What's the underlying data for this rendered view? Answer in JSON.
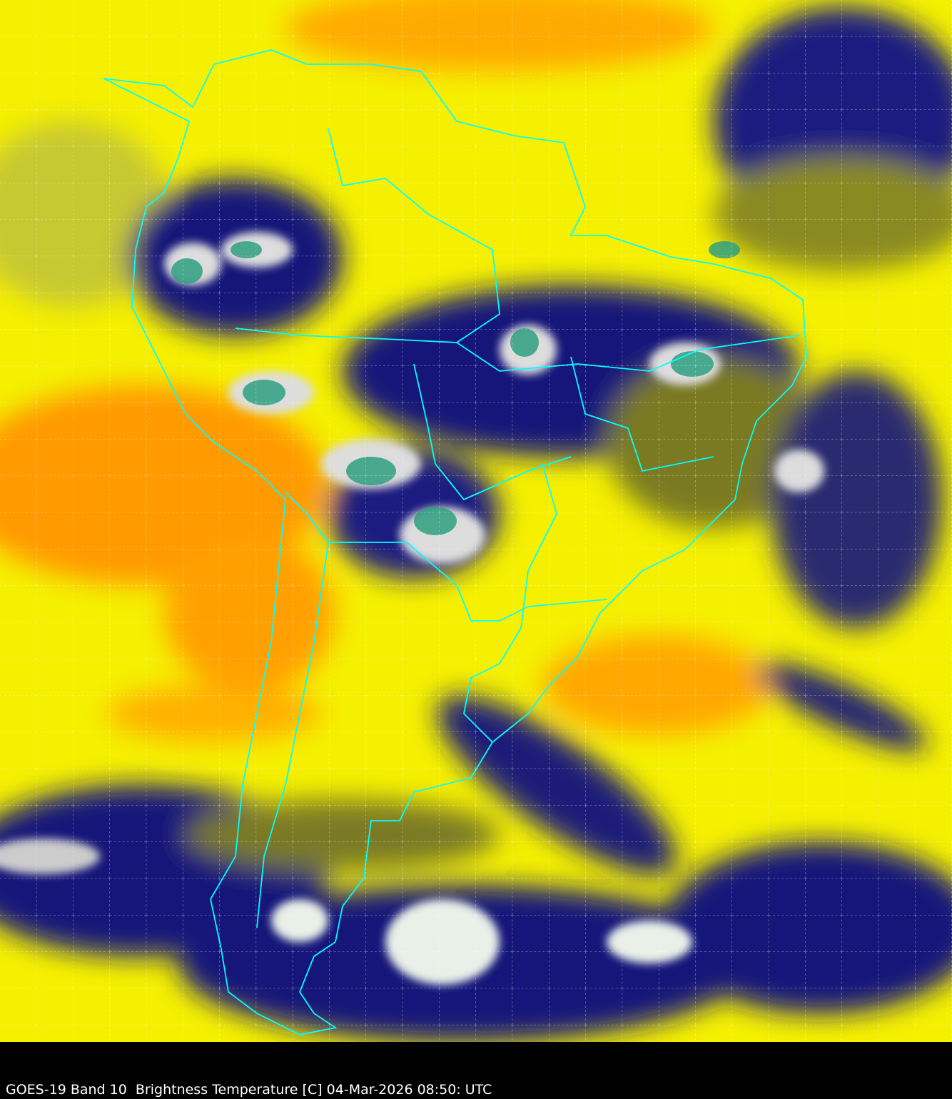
{
  "caption": "GOES-19 Band 10  Brightness Temperature [C] 04-Mar-2026 08:50: UTC",
  "colors": {
    "warm_dry": "#ffff00",
    "hot": "#ff8c00",
    "moist": "#5a5a20",
    "cold_cloud": "#10107a",
    "very_cold": "#ffffff",
    "coldest": "#2fa080",
    "borders": "#00ffff",
    "grid": "#ffffff"
  },
  "overlays": {
    "graticule": true,
    "country_borders": true
  }
}
